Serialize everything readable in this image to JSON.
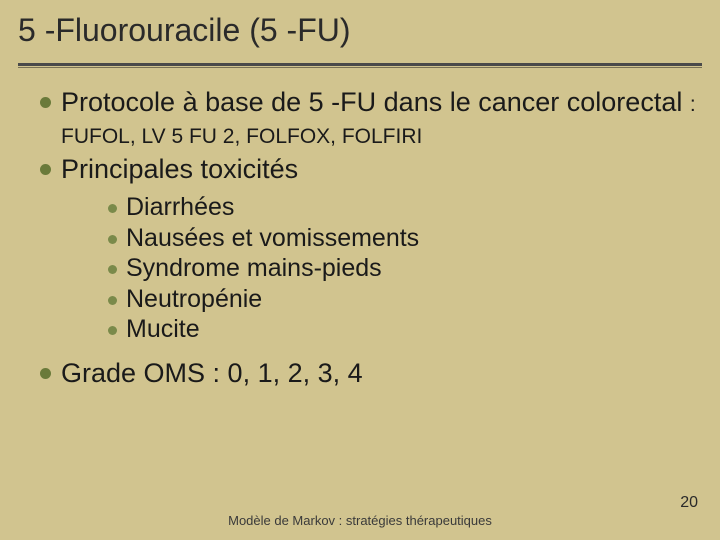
{
  "title": "5 -Fluorouracile (5 -FU)",
  "bullets_l1_a": [
    {
      "main": "Protocole à base de 5 -FU dans le cancer colorectal ",
      "small": ": FUFOL, LV 5 FU 2, FOLFOX, FOLFIRI"
    },
    {
      "main": "Principales toxicités",
      "small": ""
    }
  ],
  "bullets_l2": [
    "Diarrhées",
    "Nausées et vomissements",
    "Syndrome mains-pieds",
    "Neutropénie",
    "Mucite"
  ],
  "bullets_l1_b": [
    {
      "main": "Grade OMS : 0, 1, 2, 3, 4",
      "small": ""
    }
  ],
  "footer": "Modèle de Markov : stratégies thérapeutiques",
  "page_number": "20",
  "colors": {
    "background": "#d1c48f",
    "bullet_l1": "#6a7a3a",
    "bullet_l2": "#7a8a4a",
    "rule_top": "#4a4a4a",
    "rule_bottom": "#7a7256",
    "text": "#1a1a1a"
  }
}
